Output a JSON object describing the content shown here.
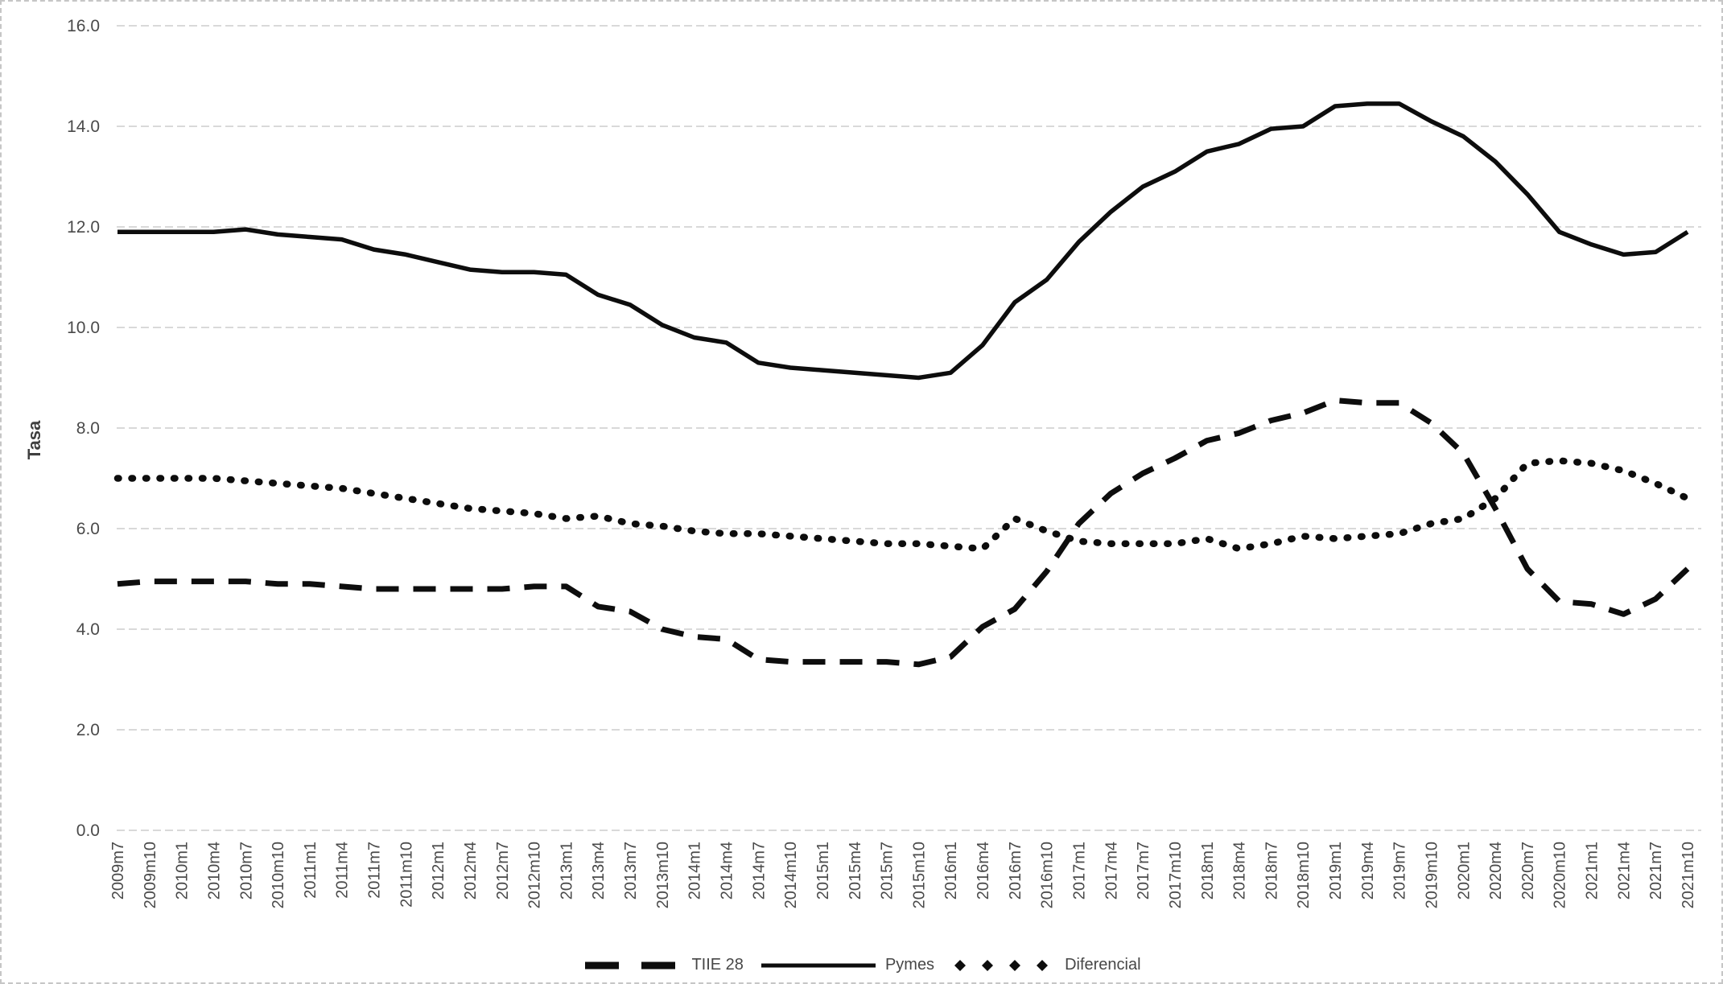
{
  "chart_data": {
    "type": "line",
    "title": "",
    "xlabel": "",
    "ylabel": "Tasa",
    "ylim": [
      0,
      16
    ],
    "y_tick_step": 2,
    "y_tick_labels": [
      "0.0",
      "2.0",
      "4.0",
      "6.0",
      "8.0",
      "10.0",
      "12.0",
      "14.0",
      "16.0"
    ],
    "x_tick_rotation": -90,
    "grid": "horizontal-dashed",
    "legend_position": "bottom-center",
    "colors": {
      "series": "#0d0d0d",
      "gridline": "#d9d9d9",
      "tick_text": "#4a4a4a",
      "axis_title_text": "#3f3f3f",
      "frame": "#c6c6c6"
    },
    "categories": [
      "2009m7",
      "2009m10",
      "2010m1",
      "2010m4",
      "2010m7",
      "2010m10",
      "2011m1",
      "2011m4",
      "2011m7",
      "2011m10",
      "2012m1",
      "2012m4",
      "2012m7",
      "2012m10",
      "2013m1",
      "2013m4",
      "2013m7",
      "2013m10",
      "2014m1",
      "2014m4",
      "2014m7",
      "2014m10",
      "2015m1",
      "2015m4",
      "2015m7",
      "2015m10",
      "2016m1",
      "2016m4",
      "2016m7",
      "2016m10",
      "2017m1",
      "2017m4",
      "2017m7",
      "2017m10",
      "2018m1",
      "2018m4",
      "2018m7",
      "2018m10",
      "2019m1",
      "2019m4",
      "2019m7",
      "2019m10",
      "2020m1",
      "2020m4",
      "2020m7",
      "2020m10",
      "2021m1",
      "2021m4",
      "2021m7",
      "2021m10"
    ],
    "series": [
      {
        "name": "TIIE 28",
        "style": "dashed",
        "values": [
          4.9,
          4.95,
          4.95,
          4.95,
          4.95,
          4.9,
          4.9,
          4.85,
          4.8,
          4.8,
          4.8,
          4.8,
          4.8,
          4.85,
          4.85,
          4.45,
          4.35,
          4.0,
          3.85,
          3.8,
          3.4,
          3.35,
          3.35,
          3.35,
          3.35,
          3.3,
          3.45,
          4.05,
          4.4,
          5.15,
          6.1,
          6.7,
          7.1,
          7.4,
          7.75,
          7.9,
          8.15,
          8.3,
          8.55,
          8.5,
          8.5,
          8.1,
          7.5,
          6.4,
          5.2,
          4.55,
          4.5,
          4.3,
          4.6,
          5.2
        ]
      },
      {
        "name": "Pymes",
        "style": "solid",
        "values": [
          11.9,
          11.9,
          11.9,
          11.9,
          11.95,
          11.85,
          11.8,
          11.75,
          11.55,
          11.45,
          11.3,
          11.15,
          11.1,
          11.1,
          11.05,
          10.65,
          10.45,
          10.05,
          9.8,
          9.7,
          9.3,
          9.2,
          9.15,
          9.1,
          9.05,
          9.0,
          9.1,
          9.65,
          10.5,
          10.95,
          11.7,
          12.3,
          12.8,
          13.1,
          13.5,
          13.65,
          13.95,
          14.0,
          14.4,
          14.45,
          14.45,
          14.1,
          13.8,
          13.3,
          12.65,
          11.9,
          11.65,
          11.45,
          11.5,
          11.9
        ]
      },
      {
        "name": "Diferencial",
        "style": "dotted",
        "values": [
          7.0,
          7.0,
          7.0,
          7.0,
          6.95,
          6.9,
          6.85,
          6.8,
          6.7,
          6.6,
          6.5,
          6.4,
          6.35,
          6.3,
          6.2,
          6.25,
          6.1,
          6.05,
          5.95,
          5.9,
          5.9,
          5.85,
          5.8,
          5.75,
          5.7,
          5.7,
          5.65,
          5.6,
          6.2,
          5.95,
          5.75,
          5.7,
          5.7,
          5.7,
          5.8,
          5.6,
          5.7,
          5.85,
          5.8,
          5.85,
          5.9,
          6.1,
          6.2,
          6.6,
          7.3,
          7.35,
          7.3,
          7.15,
          6.9,
          6.6
        ]
      }
    ]
  },
  "y_axis": {
    "title": "Tasa"
  },
  "legend": {
    "items": [
      {
        "label": "TIIE 28"
      },
      {
        "label": "Pymes"
      },
      {
        "label": "Diferencial"
      }
    ]
  }
}
